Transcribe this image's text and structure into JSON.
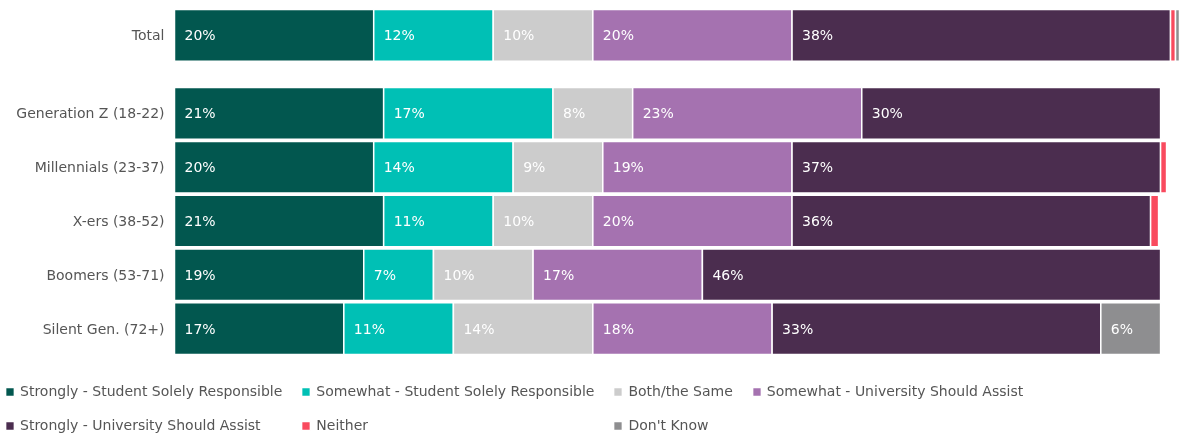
{
  "chart_data": {
    "type": "bar",
    "orientation": "horizontal",
    "stacked": true,
    "legend": "bottom",
    "grid": false,
    "tick_labels": "y",
    "categories": [
      "Total",
      "Generation Z (18-22)",
      "Millennials (23-37)",
      "X-ers (38-52)",
      "Boomers (53-71)",
      "Silent Gen. (72+)"
    ],
    "series": [
      {
        "name": "Strongly - Student Solely Responsible",
        "color": "#02574f",
        "values": [
          20,
          21,
          20,
          21,
          19,
          17
        ],
        "value_labels": [
          "20%",
          "21%",
          "20%",
          "21%",
          "19%",
          "17%"
        ]
      },
      {
        "name": "Somewhat - Student Solely Responsible",
        "color": "#00c0b5",
        "values": [
          12,
          17,
          14,
          11,
          7,
          11
        ],
        "value_labels": [
          "12%",
          "17%",
          "14%",
          "11%",
          "7%",
          "11%"
        ]
      },
      {
        "name": "Both/the Same",
        "color": "#cccccc",
        "values": [
          10,
          8,
          9,
          10,
          10,
          14
        ],
        "value_labels": [
          "10%",
          "8%",
          "9%",
          "10%",
          "10%",
          "14%"
        ]
      },
      {
        "name": "Somewhat - University Should Assist",
        "color": "#a572b0",
        "values": [
          20,
          23,
          19,
          20,
          17,
          18
        ],
        "value_labels": [
          "20%",
          "23%",
          "19%",
          "20%",
          "17%",
          "18%"
        ]
      },
      {
        "name": "Strongly - University Should Assist",
        "color": "#4b2d4f",
        "values": [
          38,
          30,
          37,
          36,
          46,
          33
        ],
        "value_labels": [
          "38%",
          "30%",
          "37%",
          "36%",
          "46%",
          "33%"
        ]
      },
      {
        "name": "Neither",
        "color": "#f94a5e",
        "values": [
          0.5,
          0,
          0.6,
          0.8,
          0,
          0
        ],
        "value_labels": [
          null,
          null,
          null,
          null,
          null,
          null
        ]
      },
      {
        "name": "Don't Know",
        "color": "#8e8e90",
        "values": [
          0.4,
          0,
          0,
          0,
          0,
          6
        ],
        "value_labels": [
          null,
          null,
          null,
          null,
          null,
          "6%"
        ]
      }
    ]
  }
}
